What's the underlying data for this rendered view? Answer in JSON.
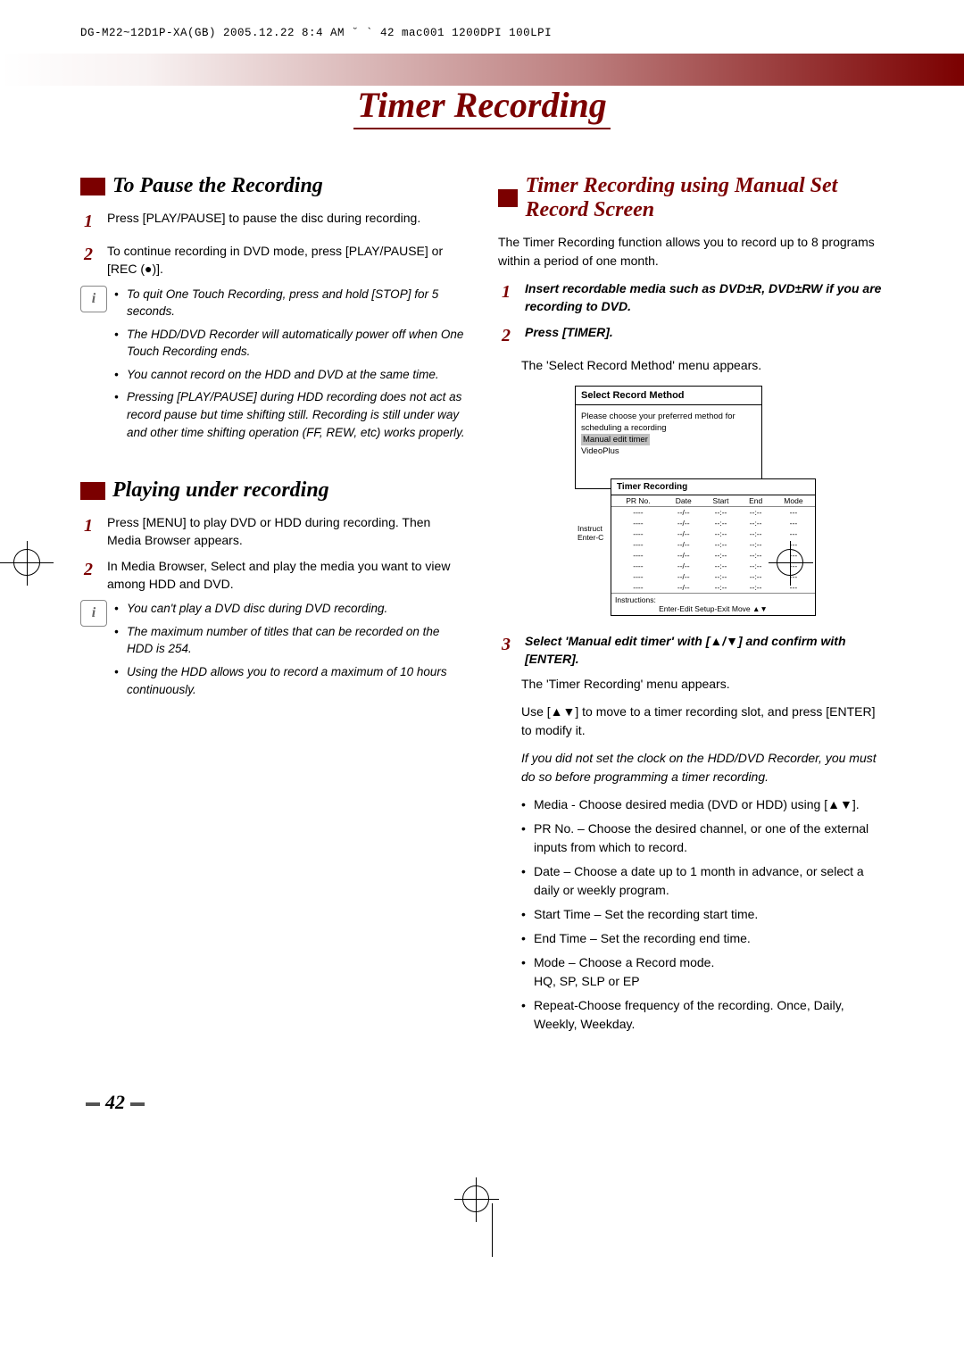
{
  "header": "DG-M22~12D1P-XA(GB)  2005.12.22 8:4 AM  ˘  ` 42   mac001  1200DPI 100LPI",
  "page_title": "Timer Recording",
  "page_number": "42",
  "colors": {
    "accent": "#7b0000",
    "text": "#000000",
    "bg": "#ffffff"
  },
  "left": {
    "section1": {
      "title": "To Pause the Recording",
      "steps": [
        "Press [PLAY/PAUSE] to pause the disc during recording.",
        "To continue recording in DVD mode, press [PLAY/PAUSE] or [REC (●)]."
      ],
      "notes": [
        "To quit One Touch Recording, press and hold [STOP] for 5 seconds.",
        "The HDD/DVD Recorder will automatically power off when One Touch Recording ends.",
        "You cannot record on the HDD and DVD at the same time.",
        "Pressing [PLAY/PAUSE] during HDD recording does not act as record pause but time shifting still. Recording is still under way and other time shifting operation (FF, REW, etc) works properly."
      ]
    },
    "section2": {
      "title": "Playing under recording",
      "steps": [
        "Press [MENU] to play DVD or HDD during recording. Then Media Browser appears.",
        "In Media Browser, Select and play the media you want to view among HDD and DVD."
      ],
      "notes": [
        "You can't play a DVD disc during DVD recording.",
        "The maximum number of titles that can be recorded on the HDD is 254.",
        "Using the HDD allows you to record a maximum of 10 hours continuously."
      ]
    }
  },
  "right": {
    "title": "Timer Recording using Manual Set Record Screen",
    "intro": "The Timer Recording function allows you to record up to 8 programs within a period of one month.",
    "steps": {
      "s1": "Insert recordable media such as DVD±R, DVD±RW if you are recording to DVD.",
      "s2_title": "Press [TIMER].",
      "s2_body": "The 'Select Record Method' menu appears.",
      "s3_title": "Select 'Manual edit timer' with [▲/▼] and confirm with [ENTER].",
      "s3_body1": "The 'Timer Recording' menu appears.",
      "s3_body2": "Use [▲▼] to move to a timer recording slot, and press [ENTER] to modify it.",
      "s3_note": "If you did not set the clock on the HDD/DVD Recorder, you must do so before programming a timer recording.",
      "s3_bullets": [
        "Media - Choose desired media (DVD or HDD) using [▲▼].",
        "PR No. – Choose the desired channel, or one of the external inputs from which to record.",
        "Date – Choose a date up to 1 month in advance, or select a daily or weekly program.",
        "Start Time – Set the recording start time.",
        "End Time – Set the recording end time.",
        "Mode – Choose a Record mode.\nHQ, SP, SLP or EP",
        "Repeat-Choose frequency of the recording. Once, Daily, Weekly, Weekday."
      ]
    },
    "menu": {
      "box1_title": "Select Record Method",
      "box1_line1": "Please choose your preferred method for scheduling a recording",
      "box1_opt1": "Manual edit timer",
      "box1_opt2": "VideoPlus",
      "box1_side1": "Instruct",
      "box1_side2": "Enter-C",
      "box2_title": "Timer Recording",
      "cols": [
        "PR No.",
        "Date",
        "Start",
        "End",
        "Mode"
      ],
      "row": [
        "----",
        "--/--",
        "--:--",
        "--:--",
        "---"
      ],
      "rows_count": 8,
      "footer1": "Instructions:",
      "footer2": "Enter-Edit  Setup-Exit  Move ▲▼"
    }
  }
}
